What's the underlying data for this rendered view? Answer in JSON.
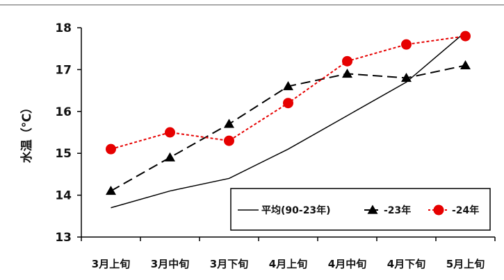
{
  "chart_data": {
    "type": "line",
    "title": "",
    "xlabel": "",
    "ylabel": "水温（℃）",
    "ylim": [
      13,
      18
    ],
    "yticks": [
      13,
      14,
      15,
      16,
      17,
      18
    ],
    "categories": [
      "3月上旬",
      "3月中旬",
      "3月下旬",
      "4月上旬",
      "4月中旬",
      "4月下旬",
      "5月上旬"
    ],
    "grid": false,
    "legend_position": "bottom-right",
    "series": [
      {
        "name": "平均(90-23年)",
        "values": [
          13.7,
          14.1,
          14.4,
          15.1,
          15.9,
          16.7,
          17.9
        ],
        "color": "#000000",
        "line_style": "solid",
        "marker": "none"
      },
      {
        "name": "-23年",
        "values": [
          14.1,
          14.9,
          15.7,
          16.6,
          16.9,
          16.8,
          17.1
        ],
        "color": "#000000",
        "line_style": "dashed",
        "marker": "triangle"
      },
      {
        "name": "-24年",
        "values": [
          15.1,
          15.5,
          15.3,
          16.2,
          17.2,
          17.6,
          17.8
        ],
        "color": "#e60000",
        "line_style": "dotted",
        "marker": "circle"
      }
    ]
  }
}
